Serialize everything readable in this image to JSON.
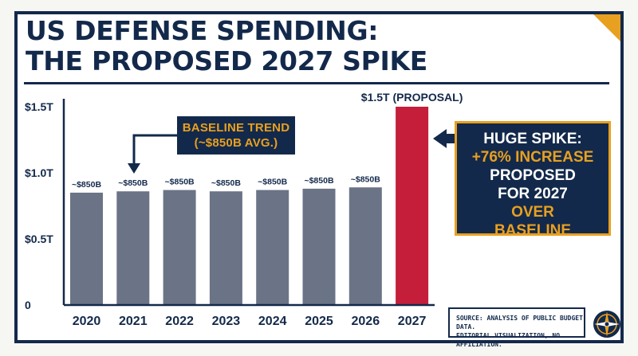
{
  "title": {
    "line1": "US DEFENSE SPENDING:",
    "line2": "THE PROPOSED 2027 SPIKE"
  },
  "colors": {
    "navy": "#13294b",
    "baseline_bar": "#6b7486",
    "spike_bar": "#c41e3a",
    "accent": "#e8a020"
  },
  "chart_data": {
    "type": "bar",
    "title": "US DEFENSE SPENDING: THE PROPOSED 2027 SPIKE",
    "categories": [
      "2020",
      "2021",
      "2022",
      "2023",
      "2024",
      "2025",
      "2026",
      "2027"
    ],
    "values": [
      0.85,
      0.86,
      0.87,
      0.86,
      0.87,
      0.88,
      0.89,
      1.5
    ],
    "data_labels": [
      "~$850B",
      "~$850B",
      "~$850B",
      "~$850B",
      "~$850B",
      "~$850B",
      "~$850B",
      "$1.5T (PROPOSAL)"
    ],
    "ylim": [
      0,
      1.5
    ],
    "yticks": [
      0,
      0.5,
      1.0,
      1.5
    ],
    "ytick_labels": [
      "0",
      "$0.5T",
      "$1.0T",
      "$1.5T"
    ],
    "xlabel": "",
    "ylabel": "",
    "grid": false,
    "highlight_category": "2027",
    "annotations": [
      {
        "lines": [
          "BASELINE TREND",
          "(~$850B AVG.)"
        ]
      },
      {
        "lines": [
          "HUGE SPIKE:",
          "+76% INCREASE",
          "PROPOSED",
          "FOR 2027",
          "OVER",
          "BASELINE"
        ]
      }
    ]
  },
  "source": {
    "line1": "SOURCE: ANALYSIS OF PUBLIC BUDGET DATA.",
    "line2": "EDITORIAL VISUALIZATION, NO AFFILIATION."
  }
}
